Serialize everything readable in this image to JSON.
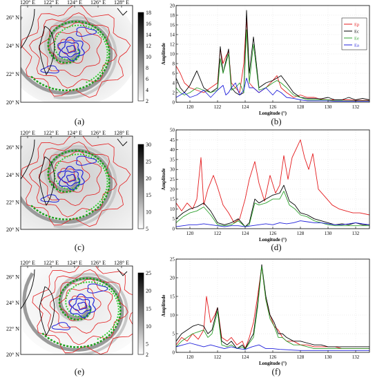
{
  "maps": [
    {
      "panel": "(a)",
      "lon_ticks": [
        "120° E",
        "122° E",
        "124° E",
        "126° E",
        "128° E"
      ],
      "lat_ticks": [
        "26° N",
        "24° N",
        "22° N",
        "20° N"
      ],
      "colorbar_ticks": [
        "18",
        "16",
        "14",
        "12",
        "10",
        "8",
        "6",
        "4",
        "2"
      ],
      "colorbar_range": [
        2,
        18
      ]
    },
    {
      "panel": "(c)",
      "lon_ticks": [
        "120° E",
        "122° E",
        "124° E",
        "126° E",
        "128° E"
      ],
      "lat_ticks": [
        "26° N",
        "24° N",
        "22° N",
        "20° N"
      ],
      "colorbar_ticks": [
        "30",
        "25",
        "20",
        "15",
        "10",
        "5"
      ],
      "colorbar_range": [
        5,
        30
      ]
    },
    {
      "panel": "(e)",
      "lon_ticks": [
        "120° E",
        "122° E",
        "124° E",
        "126° E",
        "128° E"
      ],
      "lat_ticks": [
        "26° N",
        "24° N",
        "22° N",
        "20° N"
      ],
      "colorbar_ticks": [
        "25",
        "20",
        "15",
        "10",
        "5",
        "2"
      ],
      "colorbar_range": [
        2,
        25
      ]
    }
  ],
  "chart_data": [
    {
      "panel": "(b)",
      "type": "line",
      "xlabel": "Longitude (°)",
      "ylabel": "Amplitude",
      "xlim": [
        119,
        133
      ],
      "ylim": [
        0,
        20
      ],
      "xticks": [
        120,
        122,
        124,
        126,
        128,
        130,
        132
      ],
      "yticks": [
        0,
        2,
        4,
        6,
        8,
        10,
        12,
        14,
        16,
        18,
        20
      ],
      "legend": "top-right",
      "legend_entries": [
        "Ep",
        "Ec",
        "Ee",
        "Ea"
      ],
      "series": [
        {
          "name": "Ep",
          "color": "#e41a1c",
          "x": [
            119,
            119.3,
            119.6,
            120,
            120.5,
            121,
            121.5,
            122,
            122.2,
            122.4,
            122.6,
            122.8,
            123,
            123.3,
            123.6,
            123.9,
            124.1,
            124.3,
            124.6,
            125,
            125.5,
            126,
            126.3,
            126.6,
            127,
            127.5,
            128,
            128.5,
            129,
            129.5,
            130,
            130.5,
            131,
            131.5,
            132,
            132.5,
            133
          ],
          "y": [
            7.5,
            6,
            4,
            3,
            2.5,
            2,
            3,
            4,
            11,
            8,
            9.5,
            10.5,
            4,
            3,
            2,
            8,
            17.5,
            4,
            3,
            2,
            3,
            4.5,
            5.5,
            3,
            2,
            1,
            1.5,
            1,
            1,
            0.6,
            0.5,
            0.5,
            0.5,
            0.5,
            0.4,
            0.4,
            0.4
          ]
        },
        {
          "name": "Ec",
          "color": "#000000",
          "x": [
            119,
            119.3,
            119.6,
            120,
            120.5,
            121,
            121.5,
            122,
            122.2,
            122.4,
            122.6,
            122.8,
            123,
            123.3,
            123.6,
            123.9,
            124.1,
            124.3,
            124.6,
            125,
            125.5,
            126,
            126.3,
            126.6,
            127,
            127.5,
            128,
            128.5,
            129,
            129.5,
            130,
            130.5,
            131,
            131.5,
            132,
            132.5,
            133
          ],
          "y": [
            5,
            3,
            2,
            3.5,
            6.5,
            3,
            2,
            3,
            11.5,
            6,
            8.5,
            11,
            3,
            2,
            1.5,
            2,
            19,
            6,
            13.5,
            3,
            4,
            4.5,
            5,
            5.5,
            4,
            2,
            1,
            0.8,
            0.8,
            0.7,
            1,
            0.5,
            0.5,
            1,
            0.5,
            0.8,
            0.5
          ]
        },
        {
          "name": "Ee",
          "color": "#2ca02c",
          "x": [
            119,
            119.3,
            119.6,
            120,
            120.5,
            121,
            121.5,
            122,
            122.2,
            122.4,
            122.6,
            122.8,
            123,
            123.3,
            123.6,
            123.9,
            124.1,
            124.3,
            124.6,
            125,
            125.5,
            126,
            126.3,
            126.6,
            127,
            127.5,
            128,
            128.5,
            129,
            129.5,
            130,
            130.5,
            131,
            131.5,
            132,
            132.5,
            133
          ],
          "y": [
            3,
            2,
            1.5,
            2,
            3,
            2.5,
            2,
            2.5,
            9,
            6,
            8,
            10,
            2.5,
            3,
            4,
            2,
            15,
            4,
            12,
            2.5,
            3,
            4,
            4.5,
            4,
            3,
            1.5,
            1,
            0.5,
            0.5,
            0.5,
            0.5,
            0.3,
            0.3,
            0.3,
            0.3,
            0.3,
            0.3
          ]
        },
        {
          "name": "Ea",
          "color": "#1f1fdb",
          "x": [
            119,
            119.3,
            119.6,
            120,
            120.5,
            121,
            121.5,
            122,
            122.2,
            122.4,
            122.6,
            122.8,
            123,
            123.3,
            123.6,
            123.9,
            124.1,
            124.3,
            124.6,
            125,
            125.5,
            126,
            126.3,
            126.6,
            127,
            127.5,
            128,
            128.5,
            129,
            129.5,
            130,
            130.5,
            131,
            131.5,
            132,
            132.5,
            133
          ],
          "y": [
            1,
            1.5,
            2,
            1,
            1.5,
            2.5,
            1,
            2.5,
            3,
            3.5,
            1.5,
            2,
            3,
            4,
            1.5,
            2.5,
            5,
            3,
            3,
            2,
            3,
            1.5,
            2.5,
            2,
            1,
            0.8,
            0.5,
            0.3,
            0.3,
            0.3,
            0.3,
            0.2,
            0.2,
            0.2,
            0.2,
            0.2,
            0.2
          ]
        }
      ]
    },
    {
      "panel": "(d)",
      "type": "line",
      "xlabel": "Longitude (°)",
      "ylabel": "Amplitude",
      "xlim": [
        119,
        133
      ],
      "ylim": [
        0,
        50
      ],
      "xticks": [
        120,
        122,
        124,
        126,
        128,
        130,
        132
      ],
      "yticks": [
        0,
        5,
        10,
        15,
        20,
        25,
        30,
        35,
        40,
        45,
        50
      ],
      "series": [
        {
          "name": "",
          "color": "#e41a1c",
          "x": [
            119,
            119.4,
            119.8,
            120.2,
            120.5,
            120.8,
            121,
            121.3,
            121.7,
            122,
            122.4,
            122.8,
            123.2,
            123.6,
            124,
            124.3,
            124.7,
            125,
            125.4,
            125.8,
            126.2,
            126.5,
            126.8,
            127.1,
            127.4,
            127.8,
            128,
            128.3,
            128.6,
            128.9,
            129.3,
            129.8,
            130.3,
            130.8,
            131.3,
            131.8,
            132.3,
            133
          ],
          "y": [
            13,
            9,
            13,
            10,
            15,
            36,
            12,
            20,
            27,
            21,
            12,
            8,
            3,
            5,
            15,
            25,
            34,
            23,
            14,
            27,
            18,
            22,
            37,
            25,
            36,
            42,
            45,
            36,
            30,
            38,
            20,
            16,
            12,
            10,
            9,
            8,
            8,
            7
          ]
        },
        {
          "name": "",
          "color": "#000000",
          "x": [
            119,
            119.5,
            120,
            120.5,
            121,
            121.5,
            122,
            122.5,
            123,
            123.5,
            124,
            124.3,
            124.7,
            125,
            125.5,
            126,
            126.5,
            126.8,
            127.2,
            127.6,
            128,
            128.5,
            129,
            129.5,
            130,
            130.5,
            131,
            131.5,
            132,
            132.5,
            133
          ],
          "y": [
            5,
            8,
            10,
            11,
            13,
            9,
            3,
            2,
            3,
            5,
            1,
            3,
            15,
            13,
            15,
            17,
            18,
            22,
            14,
            12,
            8,
            7,
            5,
            4,
            3,
            2,
            2.5,
            2,
            3,
            2,
            2
          ]
        },
        {
          "name": "",
          "color": "#2ca02c",
          "x": [
            119,
            119.5,
            120,
            120.5,
            121,
            121.5,
            122,
            122.5,
            123,
            123.5,
            124,
            124.3,
            124.7,
            125,
            125.5,
            126,
            126.5,
            126.8,
            127.2,
            127.6,
            128,
            128.5,
            129,
            129.5,
            130,
            130.5,
            131,
            131.5,
            132,
            132.5,
            133
          ],
          "y": [
            3,
            6,
            8,
            9,
            11,
            7,
            2,
            1.5,
            2,
            4,
            1,
            2,
            13,
            12,
            13,
            15,
            15,
            19,
            12,
            10,
            7,
            6,
            4,
            3,
            2,
            1.5,
            1.5,
            1.5,
            1.5,
            1.5,
            1.5
          ]
        },
        {
          "name": "",
          "color": "#1f1fdb",
          "x": [
            119,
            119.5,
            120,
            120.5,
            121,
            121.5,
            122,
            122.5,
            123,
            123.5,
            124,
            124.5,
            125,
            125.5,
            126,
            126.5,
            127,
            127.5,
            128,
            128.5,
            129,
            129.5,
            130,
            130.5,
            131,
            131.5,
            132,
            132.5,
            133
          ],
          "y": [
            1,
            1.5,
            2,
            2,
            2.5,
            2,
            1.5,
            1,
            1.5,
            1.5,
            1,
            1.5,
            2,
            2.5,
            2,
            3,
            2.5,
            3,
            4,
            3.5,
            3,
            3,
            2.5,
            2,
            2,
            2.5,
            3,
            2.5,
            2
          ]
        }
      ]
    },
    {
      "panel": "(f)",
      "type": "line",
      "xlabel": "Longitude (°)",
      "ylabel": "Amplitude",
      "xlim": [
        119,
        133
      ],
      "ylim": [
        0,
        25
      ],
      "xticks": [
        120,
        122,
        124,
        126,
        128,
        130,
        132
      ],
      "yticks": [
        0,
        5,
        10,
        15,
        20,
        25
      ],
      "series": [
        {
          "name": "",
          "color": "#e41a1c",
          "x": [
            119,
            119.4,
            119.8,
            120.2,
            120.6,
            121,
            121.2,
            121.5,
            121.8,
            122,
            122.3,
            122.7,
            123,
            123.4,
            123.8,
            124,
            124.3,
            124.6,
            124.9,
            125.2,
            125.5,
            125.8,
            126.1,
            126.4,
            126.7,
            127,
            127.5,
            128,
            128.5,
            129,
            129.5,
            130,
            130.5,
            131,
            131.5,
            132,
            132.5,
            133
          ],
          "y": [
            2,
            4,
            3,
            5,
            3.5,
            6,
            15,
            8,
            10,
            12,
            4,
            3,
            4,
            2,
            3,
            1,
            4,
            8,
            15,
            23,
            14,
            10,
            7,
            6,
            4,
            3,
            3,
            2,
            2,
            1.5,
            1.5,
            1.5,
            1.5,
            1,
            1,
            1,
            1,
            1
          ]
        },
        {
          "name": "",
          "color": "#000000",
          "x": [
            119,
            119.4,
            119.8,
            120.2,
            120.6,
            121,
            121.3,
            121.6,
            122,
            122.3,
            122.7,
            123,
            123.4,
            123.8,
            124,
            124.3,
            124.6,
            124.9,
            125.2,
            125.5,
            125.8,
            126.1,
            126.4,
            126.7,
            127,
            127.5,
            128,
            128.5,
            129,
            129.5,
            130,
            130.5,
            131,
            131.5,
            132,
            132.5,
            133
          ],
          "y": [
            3,
            5,
            6,
            7,
            7.5,
            7,
            5,
            6,
            12,
            3,
            2,
            3,
            1,
            2,
            1,
            3,
            5,
            13,
            23.5,
            15,
            10,
            8,
            5,
            5,
            4,
            3,
            3,
            2.5,
            2,
            2,
            1.5,
            1.5,
            1.5,
            1.5,
            1.5,
            1.5,
            1.5
          ]
        },
        {
          "name": "",
          "color": "#2ca02c",
          "x": [
            119,
            119.4,
            119.8,
            120.2,
            120.6,
            121,
            121.3,
            121.6,
            122,
            122.3,
            122.7,
            123,
            123.4,
            123.8,
            124,
            124.3,
            124.6,
            124.9,
            125.2,
            125.5,
            125.8,
            126.1,
            126.4,
            126.7,
            127,
            127.5,
            128,
            128.5,
            129,
            129.5,
            130,
            130.5,
            131,
            131.5,
            132,
            132.5,
            133
          ],
          "y": [
            1.5,
            3,
            4,
            5,
            5.5,
            6,
            4,
            5,
            11,
            2,
            1.5,
            2,
            1,
            1.5,
            0.8,
            2.5,
            4,
            12,
            23,
            14,
            9,
            7,
            4,
            4,
            3,
            2,
            2,
            1.5,
            1,
            1,
            1,
            1,
            1,
            1,
            1,
            1,
            1
          ]
        },
        {
          "name": "",
          "color": "#1f1fdb",
          "x": [
            119,
            119.5,
            120,
            120.5,
            121,
            121.5,
            122,
            122.5,
            123,
            123.5,
            124,
            124.5,
            125,
            125.5,
            126,
            126.5,
            127,
            127.5,
            128,
            128.5,
            129,
            129.5,
            130,
            130.5,
            131,
            131.5,
            132,
            132.5,
            133
          ],
          "y": [
            1.5,
            2,
            2.5,
            2,
            1.5,
            2,
            1.5,
            1,
            1.5,
            1,
            0.8,
            1.5,
            2,
            1,
            1,
            0.8,
            0.7,
            0.6,
            0.5,
            0.5,
            0.5,
            0.5,
            0.5,
            0.5,
            0.5,
            0.5,
            0.5,
            0.5,
            0.5
          ]
        }
      ]
    }
  ]
}
